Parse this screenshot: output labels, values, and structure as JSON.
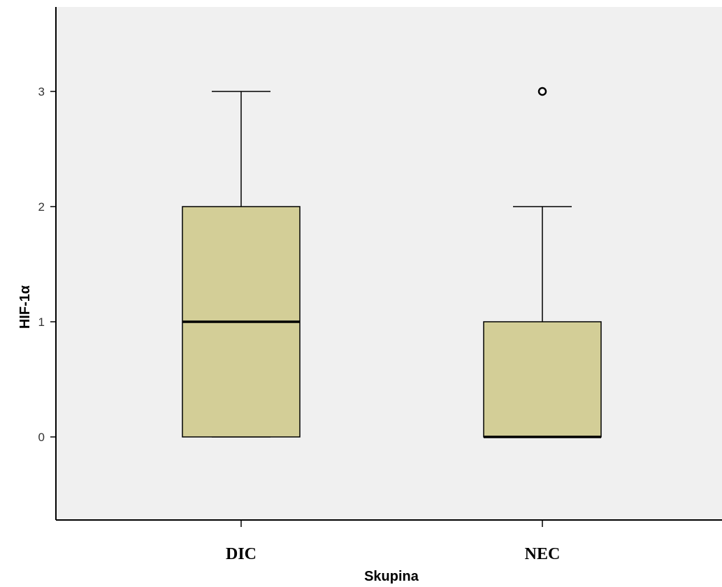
{
  "chart_data": {
    "type": "boxplot",
    "title": "",
    "xlabel": "Skupina",
    "ylabel": "HIF-1α",
    "categories": [
      "DIC",
      "NEC"
    ],
    "ylim": [
      -0.75,
      3.75
    ],
    "yticks": [
      0,
      1,
      2,
      3
    ],
    "grid": false,
    "boxes": [
      {
        "category": "DIC",
        "whisker_low": 0,
        "q1": 0,
        "median": 1,
        "q3": 2,
        "whisker_high": 3,
        "outliers": []
      },
      {
        "category": "NEC",
        "whisker_low": 0,
        "q1": 0,
        "median": 0,
        "q3": 1,
        "whisker_high": 2,
        "outliers": [
          3
        ]
      }
    ],
    "colors": {
      "plot_bg": "#f0f0f0",
      "box_fill": "#d3ce97",
      "line": "#000000"
    }
  }
}
